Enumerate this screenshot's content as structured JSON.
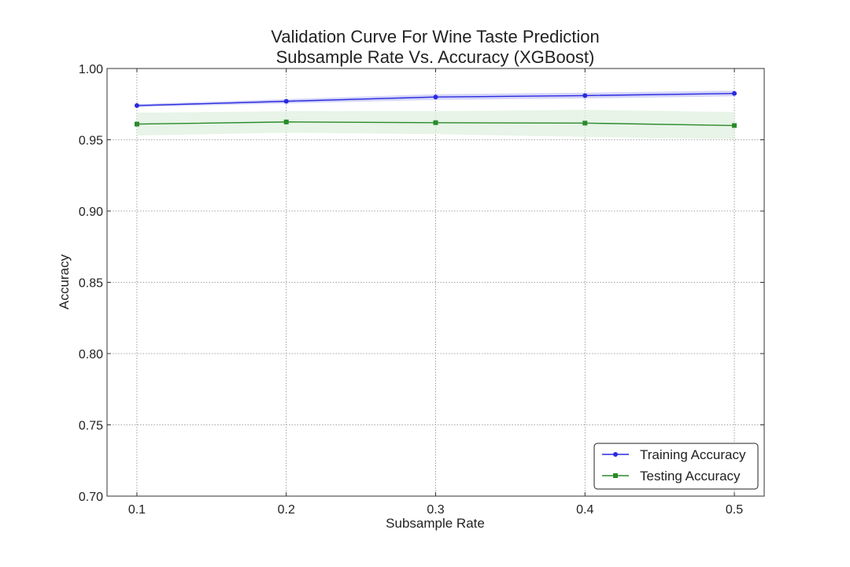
{
  "chart_data": {
    "type": "line",
    "title_lines": [
      "Validation Curve For Wine Taste Prediction",
      "Subsample Rate Vs. Accuracy (XGBoost)"
    ],
    "xlabel": "Subsample Rate",
    "ylabel": "Accuracy",
    "x": [
      0.1,
      0.2,
      0.3,
      0.4,
      0.5
    ],
    "xlim": [
      0.08,
      0.52
    ],
    "ylim": [
      0.7,
      1.0
    ],
    "xticks": [
      "0.1",
      "0.2",
      "0.3",
      "0.4",
      "0.5"
    ],
    "yticks": [
      "0.70",
      "0.75",
      "0.80",
      "0.85",
      "0.90",
      "0.95",
      "1.00"
    ],
    "grid": true,
    "legend_position": "lower-right",
    "series": [
      {
        "name": "Training Accuracy",
        "marker": "circle",
        "color": "#2a2ae0",
        "band_color": "#c8c8f5",
        "values": [
          0.974,
          0.977,
          0.98,
          0.981,
          0.9825
        ],
        "band_lower": [
          0.973,
          0.9755,
          0.978,
          0.979,
          0.9805
        ],
        "band_upper": [
          0.975,
          0.9785,
          0.982,
          0.983,
          0.9845
        ]
      },
      {
        "name": "Testing Accuracy",
        "marker": "square",
        "color": "#2b8a2b",
        "band_color": "#dff0df",
        "values": [
          0.961,
          0.9625,
          0.962,
          0.9617,
          0.96
        ],
        "band_lower": [
          0.953,
          0.955,
          0.954,
          0.952,
          0.9505
        ],
        "band_upper": [
          0.969,
          0.97,
          0.97,
          0.971,
          0.9695
        ]
      }
    ]
  }
}
